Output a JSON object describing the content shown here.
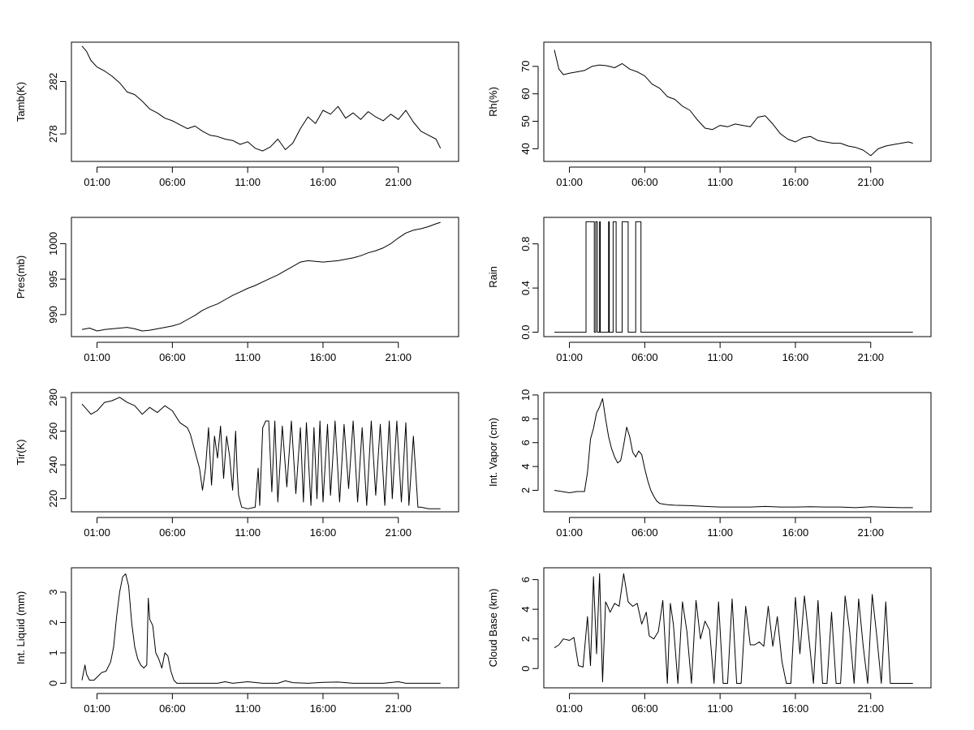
{
  "chart_data": [
    {
      "type": "line",
      "ylabel": "Tamb(K)",
      "xlabel": "",
      "title": "",
      "x_tick_labels": [
        "01:00",
        "06:00",
        "11:00",
        "16:00",
        "21:00"
      ],
      "y_ticks": [
        278,
        282
      ],
      "ylim": [
        275.9,
        285.0
      ],
      "xlim": [
        -0.7,
        25.0
      ],
      "series": [
        {
          "x": [
            0.0,
            0.3,
            0.6,
            1.0,
            1.5,
            2.0,
            2.5,
            3.0,
            3.5,
            4.0,
            4.5,
            5.0,
            5.5,
            6.0,
            6.5,
            7.0,
            7.5,
            8.0,
            8.5,
            9.0,
            9.5,
            10.0,
            10.5,
            11.0,
            11.5,
            12.0,
            12.5,
            13.0,
            13.5,
            14.0,
            14.5,
            15.0,
            15.5,
            16.0,
            16.5,
            17.0,
            17.5,
            18.0,
            18.5,
            19.0,
            19.5,
            20.0,
            20.5,
            21.0,
            21.5,
            22.0,
            22.5,
            23.0,
            23.5,
            23.8
          ],
          "y": [
            284.7,
            284.3,
            283.6,
            283.1,
            282.8,
            282.4,
            281.9,
            281.2,
            281.0,
            280.5,
            279.9,
            279.6,
            279.2,
            279.0,
            278.7,
            278.4,
            278.6,
            278.2,
            277.9,
            277.8,
            277.6,
            277.5,
            277.2,
            277.4,
            276.9,
            276.7,
            277.0,
            277.6,
            276.8,
            277.3,
            278.4,
            279.3,
            278.8,
            279.8,
            279.5,
            280.1,
            279.2,
            279.6,
            279.1,
            279.7,
            279.3,
            279.0,
            279.5,
            279.1,
            279.8,
            278.9,
            278.2,
            277.9,
            277.6,
            276.9
          ]
        }
      ]
    },
    {
      "type": "line",
      "ylabel": "Rh(%)",
      "xlabel": "",
      "title": "",
      "x_tick_labels": [
        "01:00",
        "06:00",
        "11:00",
        "16:00",
        "21:00"
      ],
      "y_ticks": [
        40,
        50,
        60,
        70
      ],
      "ylim": [
        35.4,
        78.8
      ],
      "xlim": [
        -0.7,
        25.0
      ],
      "series": [
        {
          "x": [
            0.0,
            0.3,
            0.6,
            1.0,
            1.5,
            2.0,
            2.5,
            3.0,
            3.5,
            4.0,
            4.5,
            5.0,
            5.5,
            6.0,
            6.5,
            7.0,
            7.5,
            8.0,
            8.5,
            9.0,
            9.5,
            10.0,
            10.5,
            11.0,
            11.5,
            12.0,
            12.5,
            13.0,
            13.5,
            14.0,
            14.5,
            15.0,
            15.5,
            16.0,
            16.5,
            17.0,
            17.5,
            18.0,
            18.5,
            19.0,
            19.5,
            20.0,
            20.5,
            21.0,
            21.5,
            22.0,
            22.5,
            23.0,
            23.5,
            23.8
          ],
          "y": [
            76.0,
            69.0,
            67.0,
            67.5,
            68.0,
            68.5,
            70.0,
            70.5,
            70.2,
            69.5,
            71.0,
            69.0,
            68.0,
            66.5,
            63.5,
            62.0,
            59.0,
            58.0,
            55.5,
            54.0,
            50.5,
            47.5,
            47.0,
            48.5,
            48.0,
            49.0,
            48.5,
            48.0,
            51.5,
            52.0,
            49.0,
            45.5,
            43.5,
            42.5,
            44.0,
            44.5,
            43.0,
            42.5,
            42.0,
            42.0,
            41.0,
            40.5,
            39.5,
            37.5,
            40.0,
            41.0,
            41.5,
            42.0,
            42.5,
            42.0
          ]
        }
      ]
    },
    {
      "type": "line",
      "ylabel": "Pres(mb)",
      "xlabel": "",
      "title": "",
      "x_tick_labels": [
        "01:00",
        "06:00",
        "11:00",
        "16:00",
        "21:00"
      ],
      "y_ticks": [
        990,
        995,
        1000
      ],
      "ylim": [
        986.9,
        1003.7
      ],
      "xlim": [
        -0.7,
        25.0
      ],
      "series": [
        {
          "x": [
            0.0,
            0.5,
            1.0,
            1.5,
            2.0,
            2.5,
            3.0,
            3.5,
            4.0,
            4.5,
            5.0,
            5.5,
            6.0,
            6.5,
            7.0,
            7.5,
            8.0,
            8.5,
            9.0,
            9.5,
            10.0,
            10.5,
            11.0,
            11.5,
            12.0,
            12.5,
            13.0,
            13.5,
            14.0,
            14.5,
            15.0,
            15.5,
            16.0,
            16.5,
            17.0,
            17.5,
            18.0,
            18.5,
            19.0,
            19.5,
            20.0,
            20.5,
            21.0,
            21.5,
            22.0,
            22.5,
            23.0,
            23.5,
            23.8
          ],
          "y": [
            987.9,
            988.1,
            987.7,
            987.9,
            988.0,
            988.1,
            988.2,
            988.0,
            987.7,
            987.8,
            988.0,
            988.2,
            988.4,
            988.7,
            989.3,
            989.9,
            990.6,
            991.1,
            991.5,
            992.1,
            992.7,
            993.2,
            993.7,
            994.1,
            994.6,
            995.1,
            995.6,
            996.2,
            996.8,
            997.4,
            997.6,
            997.5,
            997.4,
            997.5,
            997.6,
            997.8,
            998.0,
            998.3,
            998.7,
            999.0,
            999.4,
            1000.0,
            1000.8,
            1001.5,
            1001.9,
            1002.1,
            1002.4,
            1002.8,
            1003.0
          ]
        }
      ]
    },
    {
      "type": "line",
      "ylabel": "Rain",
      "xlabel": "",
      "title": "",
      "x_tick_labels": [
        "01:00",
        "06:00",
        "11:00",
        "16:00",
        "21:00"
      ],
      "y_ticks": [
        0.0,
        0.4,
        0.8
      ],
      "y_tick_labels": [
        "0.0",
        "0.4",
        "0.8"
      ],
      "ylim": [
        -0.04,
        1.04
      ],
      "xlim": [
        -0.7,
        25.0
      ],
      "series": [
        {
          "x": [
            0.0,
            2.1,
            2.1,
            2.65,
            2.65,
            2.75,
            2.75,
            2.85,
            2.85,
            3.0,
            3.0,
            3.05,
            3.05,
            3.6,
            3.6,
            3.65,
            3.65,
            3.9,
            3.9,
            4.1,
            4.1,
            4.5,
            4.5,
            4.9,
            4.9,
            5.4,
            5.4,
            5.75,
            5.75,
            23.8
          ],
          "y": [
            0,
            0,
            1,
            1,
            0,
            0,
            1,
            1,
            0,
            0,
            1,
            1,
            0,
            0,
            1,
            1,
            0,
            0,
            1,
            1,
            0,
            0,
            1,
            1,
            0,
            0,
            1,
            1,
            0,
            0
          ]
        }
      ]
    },
    {
      "type": "line",
      "ylabel": "Tir(K)",
      "xlabel": "",
      "title": "",
      "x_tick_labels": [
        "01:00",
        "06:00",
        "11:00",
        "16:00",
        "21:00"
      ],
      "y_ticks": [
        220,
        240,
        260,
        280
      ],
      "ylim": [
        212.2,
        282.8
      ],
      "xlim": [
        -0.7,
        25.0
      ],
      "series": [
        {
          "x": [
            0.0,
            0.3,
            0.6,
            1.0,
            1.5,
            2.0,
            2.5,
            3.0,
            3.5,
            4.0,
            4.5,
            5.0,
            5.5,
            6.0,
            6.5,
            7.0,
            7.2,
            7.5,
            7.8,
            8.0,
            8.2,
            8.4,
            8.6,
            8.8,
            9.0,
            9.2,
            9.4,
            9.6,
            9.8,
            10.0,
            10.2,
            10.3,
            10.4,
            10.6,
            11.0,
            11.5,
            11.7,
            11.8,
            12.0,
            12.2,
            12.4,
            12.6,
            12.8,
            13.0,
            13.3,
            13.6,
            13.9,
            14.2,
            14.5,
            14.7,
            14.9,
            15.2,
            15.4,
            15.6,
            15.8,
            16.0,
            16.3,
            16.5,
            16.8,
            17.1,
            17.4,
            17.7,
            18.0,
            18.3,
            18.6,
            18.9,
            19.2,
            19.5,
            19.8,
            20.1,
            20.4,
            20.6,
            20.9,
            21.2,
            21.5,
            21.7,
            22.0,
            22.3,
            22.5,
            23.0,
            23.5,
            23.8
          ],
          "y": [
            276,
            273,
            270,
            272,
            277,
            278,
            280,
            277,
            275,
            270,
            274,
            271,
            275,
            272,
            265,
            262,
            258,
            248,
            238,
            225,
            238,
            262,
            228,
            257,
            244,
            263,
            232,
            257,
            245,
            225,
            260,
            236,
            222,
            215,
            214,
            215,
            238,
            216,
            262,
            266,
            266,
            224,
            266,
            218,
            263,
            227,
            266,
            223,
            262,
            218,
            265,
            216,
            262,
            220,
            266,
            218,
            264,
            222,
            266,
            218,
            264,
            226,
            266,
            218,
            262,
            216,
            266,
            222,
            264,
            216,
            266,
            220,
            266,
            218,
            265,
            216,
            257,
            215,
            215,
            214,
            214,
            214
          ]
        }
      ]
    },
    {
      "type": "line",
      "ylabel": "Int. Vapor (cm)",
      "xlabel": "",
      "title": "",
      "x_tick_labels": [
        "01:00",
        "06:00",
        "11:00",
        "16:00",
        "21:00"
      ],
      "y_ticks": [
        2,
        4,
        6,
        8,
        10
      ],
      "ylim": [
        0.2,
        10.2
      ],
      "xlim": [
        -0.7,
        25.0
      ],
      "series": [
        {
          "x": [
            0.0,
            0.5,
            1.0,
            1.5,
            2.0,
            2.2,
            2.4,
            2.6,
            2.8,
            3.0,
            3.2,
            3.4,
            3.6,
            3.8,
            4.0,
            4.2,
            4.4,
            4.6,
            4.8,
            5.0,
            5.2,
            5.4,
            5.6,
            5.8,
            6.0,
            6.2,
            6.4,
            6.6,
            6.8,
            7.0,
            7.5,
            8.0,
            9.0,
            10.0,
            11.0,
            12.0,
            13.0,
            14.0,
            15.0,
            16.0,
            17.0,
            18.0,
            19.0,
            20.0,
            21.0,
            22.0,
            23.0,
            23.8
          ],
          "y": [
            2.0,
            1.9,
            1.8,
            1.9,
            1.9,
            3.5,
            6.3,
            7.2,
            8.5,
            9.0,
            9.7,
            8.0,
            6.5,
            5.5,
            4.8,
            4.3,
            4.5,
            5.8,
            7.3,
            6.5,
            5.2,
            4.8,
            5.3,
            5.0,
            3.8,
            2.8,
            2.0,
            1.5,
            1.1,
            0.9,
            0.8,
            0.75,
            0.72,
            0.65,
            0.6,
            0.6,
            0.6,
            0.65,
            0.6,
            0.6,
            0.62,
            0.6,
            0.6,
            0.55,
            0.62,
            0.58,
            0.55,
            0.55
          ]
        }
      ]
    },
    {
      "type": "line",
      "ylabel": "Int. Liquid (mm)",
      "xlabel": "",
      "title": "",
      "x_tick_labels": [
        "01:00",
        "06:00",
        "11:00",
        "16:00",
        "21:00"
      ],
      "y_ticks": [
        0,
        1,
        2,
        3
      ],
      "ylim": [
        -0.15,
        3.8
      ],
      "xlim": [
        -0.7,
        25.0
      ],
      "series": [
        {
          "x": [
            0.0,
            0.2,
            0.3,
            0.5,
            0.8,
            1.0,
            1.3,
            1.6,
            1.9,
            2.1,
            2.3,
            2.5,
            2.7,
            2.9,
            3.1,
            3.3,
            3.5,
            3.7,
            3.9,
            4.1,
            4.3,
            4.4,
            4.5,
            4.7,
            4.9,
            5.1,
            5.3,
            5.5,
            5.7,
            5.9,
            6.1,
            6.3,
            6.5,
            7.0,
            9.0,
            9.5,
            10.0,
            11.0,
            12.0,
            13.0,
            13.5,
            14.0,
            15.0,
            16.0,
            17.0,
            18.0,
            19.0,
            20.0,
            21.0,
            21.5,
            22.0,
            23.0,
            23.8
          ],
          "y": [
            0.1,
            0.6,
            0.3,
            0.1,
            0.1,
            0.2,
            0.35,
            0.4,
            0.7,
            1.2,
            2.2,
            3.0,
            3.5,
            3.6,
            3.2,
            2.0,
            1.2,
            0.8,
            0.6,
            0.5,
            0.6,
            2.8,
            2.1,
            1.9,
            1.0,
            0.8,
            0.5,
            1.0,
            0.9,
            0.4,
            0.1,
            0.0,
            0.0,
            0.0,
            0.0,
            0.05,
            0.0,
            0.05,
            0.0,
            0.0,
            0.08,
            0.02,
            0.0,
            0.03,
            0.04,
            0.0,
            0.0,
            0.0,
            0.05,
            0.0,
            0.0,
            0.0,
            0.0
          ]
        }
      ]
    },
    {
      "type": "line",
      "ylabel": "Cloud Base (km)",
      "xlabel": "",
      "title": "",
      "x_tick_labels": [
        "01:00",
        "06:00",
        "11:00",
        "16:00",
        "21:00"
      ],
      "y_ticks": [
        0,
        2,
        4,
        6
      ],
      "ylim": [
        -1.3,
        6.8
      ],
      "xlim": [
        -0.7,
        25.0
      ],
      "series": [
        {
          "x": [
            0.0,
            0.3,
            0.6,
            1.0,
            1.3,
            1.6,
            1.9,
            2.2,
            2.4,
            2.6,
            2.8,
            3.0,
            3.2,
            3.4,
            3.5,
            3.7,
            4.0,
            4.3,
            4.6,
            4.9,
            5.2,
            5.5,
            5.8,
            6.1,
            6.3,
            6.6,
            6.9,
            7.2,
            7.5,
            7.7,
            7.9,
            8.2,
            8.5,
            8.8,
            9.1,
            9.4,
            9.7,
            10.0,
            10.3,
            10.6,
            10.9,
            11.2,
            11.5,
            11.8,
            12.1,
            12.4,
            12.7,
            13.0,
            13.3,
            13.6,
            13.9,
            14.2,
            14.5,
            14.8,
            15.1,
            15.4,
            15.7,
            16.0,
            16.3,
            16.6,
            16.9,
            17.2,
            17.5,
            17.8,
            18.1,
            18.4,
            18.7,
            19.0,
            19.3,
            19.6,
            19.9,
            20.2,
            20.5,
            20.8,
            21.1,
            21.4,
            21.7,
            22.0,
            22.3,
            22.6,
            23.0,
            23.5,
            23.8
          ],
          "y": [
            1.4,
            1.6,
            2.0,
            1.9,
            2.1,
            0.2,
            0.1,
            3.5,
            0.2,
            6.2,
            1.0,
            6.4,
            -0.9,
            4.5,
            4.3,
            3.8,
            4.4,
            4.2,
            6.4,
            4.5,
            4.2,
            4.4,
            3.0,
            3.8,
            2.2,
            2.0,
            2.5,
            4.6,
            -1.0,
            4.4,
            3.0,
            -1.0,
            4.5,
            2.5,
            -1.0,
            4.6,
            2.0,
            3.2,
            2.6,
            -1.0,
            4.5,
            -1.0,
            -1.0,
            4.7,
            -1.0,
            -1.0,
            4.2,
            1.6,
            1.6,
            1.8,
            1.5,
            4.2,
            1.5,
            3.5,
            0.5,
            -1.0,
            -1.0,
            4.8,
            1.0,
            4.9,
            2.0,
            -1.0,
            4.6,
            -1.0,
            -1.0,
            3.8,
            -1.0,
            -1.0,
            4.9,
            2.5,
            -1.0,
            4.7,
            1.5,
            -1.0,
            5.0,
            2.2,
            -1.0,
            4.5,
            -1.0,
            -1.0,
            -1.0,
            -1.0,
            -1.0
          ]
        }
      ]
    }
  ]
}
